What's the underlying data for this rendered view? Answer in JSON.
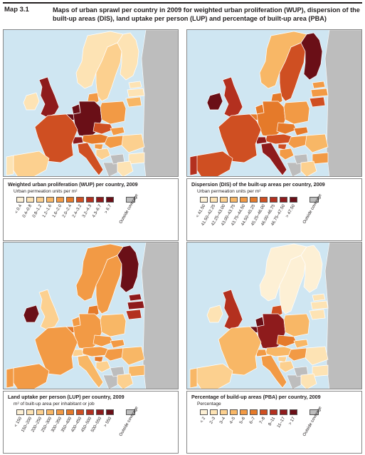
{
  "header": {
    "map_number": "Map 3.1",
    "title": "Maps of urban sprawl per country in 2009 for weighted urban proliferation (WUP), dispersion of the built-up areas (DIS), land uptake per person (LUP) and percentage of built-up area (PBA)"
  },
  "colors": {
    "sea": "#cfe6f2",
    "outside": "#bdbdbd",
    "scale": [
      "#ffffff",
      "#fdf0d5",
      "#fde3b4",
      "#fcd08f",
      "#f8b766",
      "#f29a45",
      "#e57a2a",
      "#cf4f22",
      "#b3301f",
      "#8e1b1c",
      "#6a0f17"
    ]
  },
  "panels": [
    {
      "id": "wup",
      "legend_title": "Weighted urban proliferation (WUP) per country, 2009",
      "unit": "Urban permeation units per m²",
      "classes": [
        "< 0.4",
        "0.4–0.8",
        "0.8–1.2",
        "1.2–1.6",
        "1.6–2.0",
        "2.0–2.4",
        "2.4–3.2",
        "3.2–4.3",
        "4.3–6.7",
        "> 6.7"
      ],
      "outside": "Outside coverage",
      "countries": {
        "ES": 2,
        "PT": 1,
        "FR": 6,
        "UK": 8,
        "IE": 1,
        "BE": 9,
        "NL": 9,
        "DE": 9,
        "DK": 4,
        "CH": 8,
        "AT": 5,
        "IT": 6,
        "NO": 1,
        "SE": 2,
        "FI": 1,
        "PL": 4,
        "CZ": 6,
        "SK": 4,
        "HU": 4,
        "SI": 4,
        "HR": 2,
        "RO": 2,
        "BG": 1,
        "GR": 1,
        "EE": 1,
        "LV": 1,
        "LT": 3
      }
    },
    {
      "id": "dis",
      "legend_title": "Dispersion (DIS) of the built-up areas per country, 2009",
      "unit": "Urban permeation units per m²",
      "classes": [
        "< 41.50",
        "41.50–42.25",
        "42.25–43.00",
        "43.00–43.75",
        "43.75–44.50",
        "44.50–45.25",
        "45.25–46.00",
        "46.00–46.75",
        "46.75–47.50",
        "> 47.50"
      ],
      "outside": "Outside coverage",
      "countries": {
        "ES": 6,
        "PT": 7,
        "FR": 6,
        "UK": 7,
        "IE": 9,
        "BE": 5,
        "NL": 5,
        "DE": 5,
        "DK": 5,
        "CH": 8,
        "AT": 6,
        "IT": 8,
        "NO": 3,
        "SE": 6,
        "FI": 9,
        "PL": 4,
        "CZ": 5,
        "SK": 5,
        "HU": 4,
        "SI": 6,
        "HR": 4,
        "RO": 3,
        "BG": 4,
        "GR": 2,
        "EE": 4,
        "LV": 4,
        "LT": 6
      }
    },
    {
      "id": "lup",
      "legend_title": "Land uptake per person (LUP) per country, 2009",
      "unit": "m² of built-up area per inhabitant or job",
      "classes": [
        "< 150",
        "150–200",
        "200–250",
        "250–300",
        "300–350",
        "350–400",
        "400–450",
        "450–500",
        "500–550",
        "> 550"
      ],
      "outside": "Outside coverage",
      "countries": {
        "ES": 4,
        "PT": 4,
        "FR": 4,
        "UK": 2,
        "IE": 9,
        "BE": 5,
        "NL": 4,
        "DE": 4,
        "DK": 5,
        "CH": 2,
        "AT": 4,
        "IT": 3,
        "NO": 4,
        "SE": 4,
        "FI": 9,
        "PL": 3,
        "CZ": 4,
        "SK": 4,
        "HU": 4,
        "SI": 5,
        "HR": 2,
        "RO": 3,
        "BG": 3,
        "GR": 2,
        "EE": 8,
        "LV": 8,
        "LT": 7
      }
    },
    {
      "id": "pba",
      "legend_title": "Percentage of build-up areas (PBA) per country, 2009",
      "unit": "Percentage",
      "classes": [
        "< 2",
        "2–3",
        "3–4",
        "4–5",
        "5–6",
        "6–7",
        "7–8",
        "8–11",
        "11–17",
        "> 17"
      ],
      "outside": "Outside coverage",
      "countries": {
        "ES": 2,
        "PT": 3,
        "FR": 3,
        "UK": 7,
        "IE": 1,
        "BE": 9,
        "NL": 9,
        "DE": 8,
        "DK": 6,
        "CH": 4,
        "AT": 3,
        "IT": 4,
        "NO": 0,
        "SE": 0,
        "FI": 0,
        "PL": 3,
        "CZ": 5,
        "SK": 3,
        "HU": 4,
        "SI": 2,
        "HR": 2,
        "RO": 1,
        "BG": 1,
        "GR": 1,
        "EE": 1,
        "LV": 1,
        "LT": 1
      }
    }
  ]
}
